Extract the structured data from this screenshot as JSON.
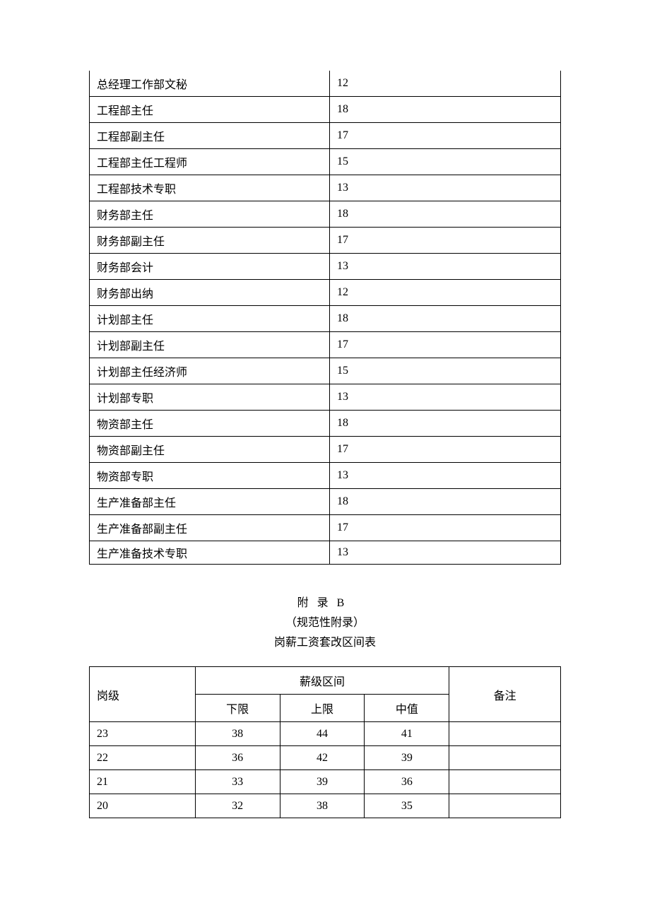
{
  "table1": {
    "rows": [
      {
        "position": "总经理工作部文秘",
        "value": "12"
      },
      {
        "position": "工程部主任",
        "value": "18"
      },
      {
        "position": "工程部副主任",
        "value": "17"
      },
      {
        "position": "工程部主任工程师",
        "value": "15"
      },
      {
        "position": "工程部技术专职",
        "value": "13"
      },
      {
        "position": "财务部主任",
        "value": "18"
      },
      {
        "position": "财务部副主任",
        "value": "17"
      },
      {
        "position": "财务部会计",
        "value": "13"
      },
      {
        "position": "财务部出纳",
        "value": "12"
      },
      {
        "position": "计划部主任",
        "value": "18"
      },
      {
        "position": "计划部副主任",
        "value": "17"
      },
      {
        "position": "计划部主任经济师",
        "value": "15"
      },
      {
        "position": "计划部专职",
        "value": "13"
      },
      {
        "position": "物资部主任",
        "value": "18"
      },
      {
        "position": "物资部副主任",
        "value": "17"
      },
      {
        "position": "物资部专职",
        "value": "13"
      },
      {
        "position": "生产准备部主任",
        "value": "18"
      },
      {
        "position": "生产准备部副主任",
        "value": "17"
      },
      {
        "position": "生产准备技术专职",
        "value": "13"
      }
    ]
  },
  "appendix": {
    "title_line1": "附录B",
    "title_line2": "（规范性附录）",
    "title_line3": "岗薪工资套改区间表"
  },
  "table2": {
    "header": {
      "grade": "岗级",
      "range": "薪级区间",
      "remark": "备注",
      "lower": "下限",
      "upper": "上限",
      "mid": "中值"
    },
    "rows": [
      {
        "grade": "23",
        "lower": "38",
        "upper": "44",
        "mid": "41",
        "remark": ""
      },
      {
        "grade": "22",
        "lower": "36",
        "upper": "42",
        "mid": "39",
        "remark": ""
      },
      {
        "grade": "21",
        "lower": "33",
        "upper": "39",
        "mid": "36",
        "remark": ""
      },
      {
        "grade": "20",
        "lower": "32",
        "upper": "38",
        "mid": "35",
        "remark": ""
      }
    ]
  },
  "style": {
    "font_family": "SimSun",
    "font_size_pt": 12,
    "border_color": "#000000",
    "background_color": "#ffffff",
    "text_color": "#000000"
  }
}
